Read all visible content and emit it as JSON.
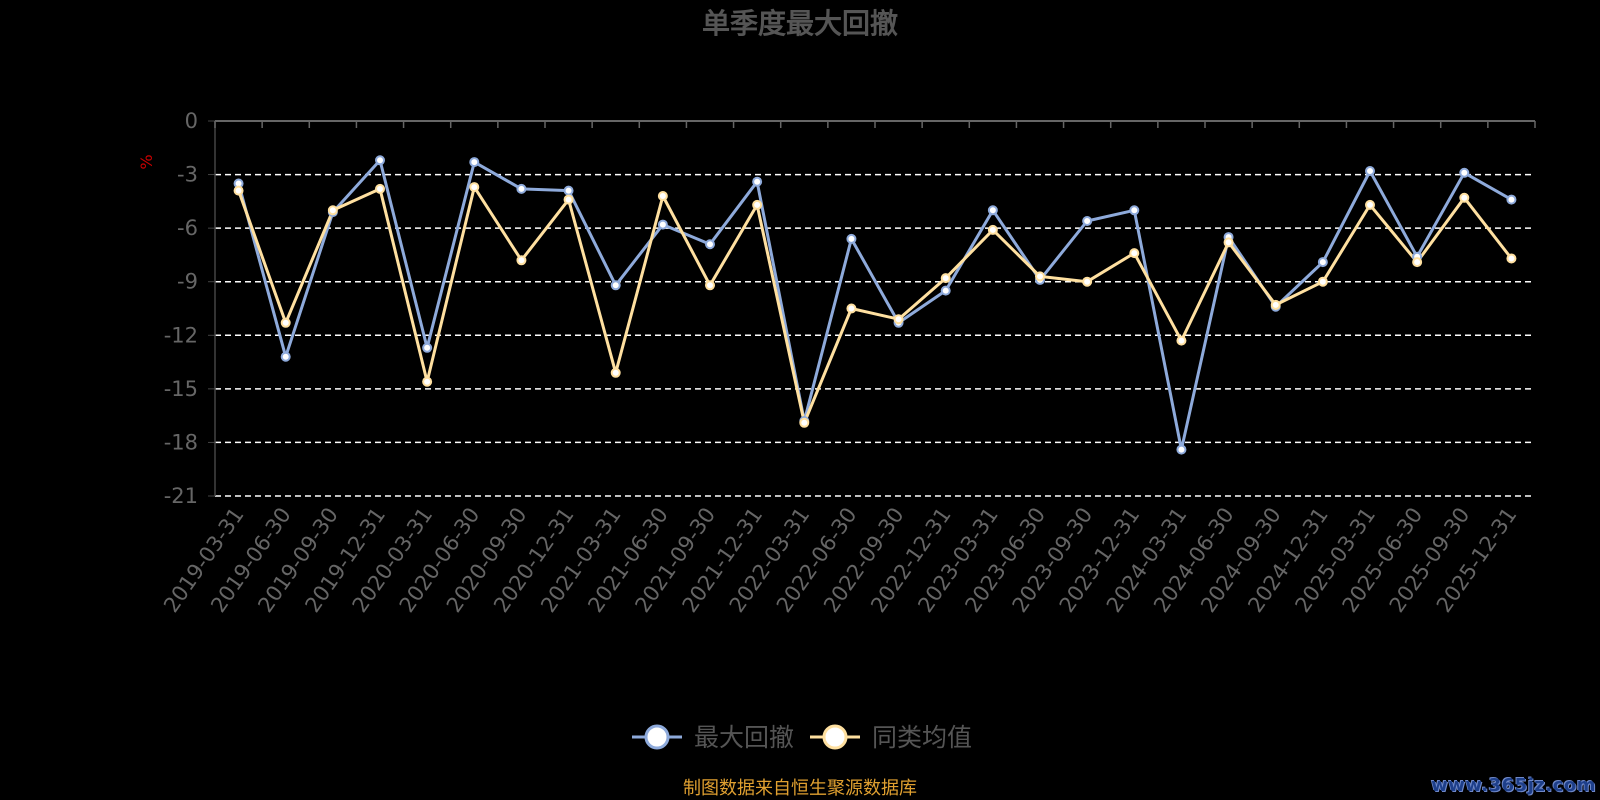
{
  "chart_data": {
    "type": "line",
    "title": "单季度最大回撤",
    "ylabel": "%",
    "ylim": [
      -21,
      0
    ],
    "yticks": [
      0,
      -3,
      -6,
      -9,
      -12,
      -15,
      -18,
      -21
    ],
    "grid": true,
    "legend_position": "bottom",
    "categories": [
      "2019-03-31",
      "2019-06-30",
      "2019-09-30",
      "2019-12-31",
      "2020-03-31",
      "2020-06-30",
      "2020-09-30",
      "2020-12-31",
      "2021-03-31",
      "2021-06-30",
      "2021-09-30",
      "2021-12-31",
      "2022-03-31",
      "2022-06-30",
      "2022-09-30",
      "2022-12-31",
      "2023-03-31",
      "2023-06-30",
      "2023-09-30",
      "2023-12-31",
      "2024-03-31",
      "2024-06-30",
      "2024-09-30",
      "2024-12-31",
      "2025-03-31",
      "2025-06-30",
      "2025-09-30",
      "2025-12-31"
    ],
    "series": [
      {
        "name": "最大回撤",
        "color": "#8eaadb",
        "values": [
          -3.5,
          -13.2,
          -5.1,
          -2.2,
          -12.7,
          -2.3,
          -3.8,
          -3.9,
          -9.2,
          -5.8,
          -6.9,
          -3.4,
          -16.8,
          -6.6,
          -11.3,
          -9.5,
          -5.0,
          -8.9,
          -5.6,
          -5.0,
          -18.4,
          -6.5,
          -10.4,
          -7.9,
          -2.8,
          -7.6,
          -2.9,
          -4.4
        ]
      },
      {
        "name": "同类均值",
        "color": "#ffe0a0",
        "values": [
          -3.9,
          -11.3,
          -5.0,
          -3.8,
          -14.6,
          -3.7,
          -7.8,
          -4.4,
          -14.1,
          -4.2,
          -9.2,
          -4.7,
          -16.9,
          -10.5,
          -11.1,
          -8.8,
          -6.1,
          -8.7,
          -9.0,
          -7.4,
          -12.3,
          -6.8,
          -10.3,
          -9.0,
          -4.7,
          -7.9,
          -4.3,
          -7.7
        ]
      }
    ]
  },
  "footer": {
    "source": "制图数据来自恒生聚源数据库",
    "watermark": "www.365jz.com"
  }
}
